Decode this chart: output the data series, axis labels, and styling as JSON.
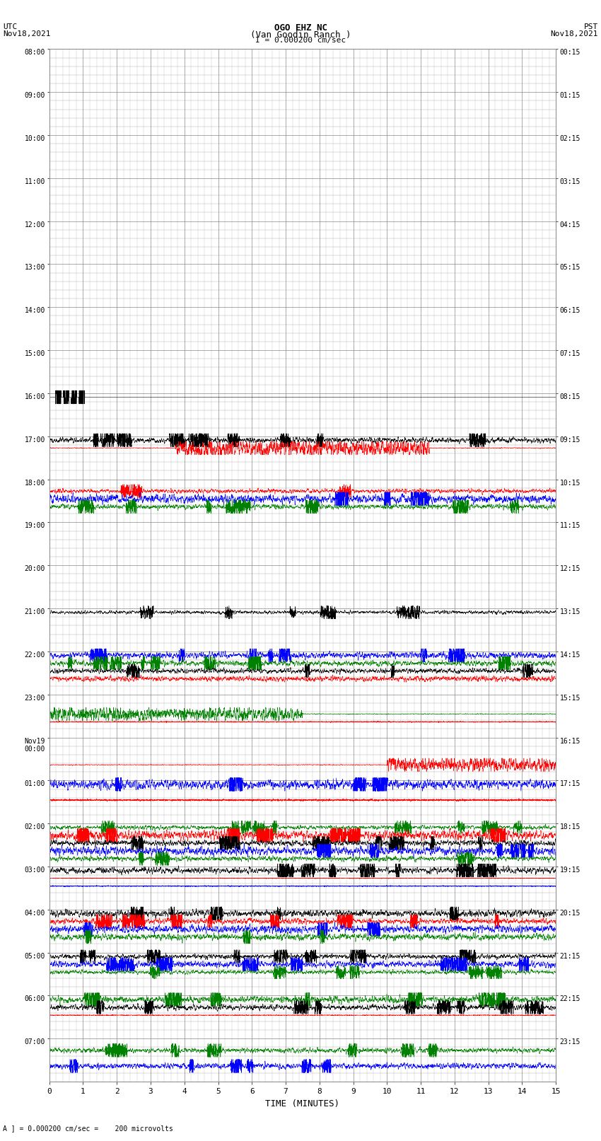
{
  "title_line1": "OGO EHZ NC",
  "title_line2": "(Van Goodin Ranch )",
  "title_scale": "I = 0.000200 cm/sec",
  "left_label_line1": "UTC",
  "left_label_line2": "Nov18,2021",
  "right_label_line1": "PST",
  "right_label_line2": "Nov18,2021",
  "bottom_label": "TIME (MINUTES)",
  "bottom_note": "A ] = 0.000200 cm/sec =    200 microvolts",
  "utc_times": [
    "08:00",
    "09:00",
    "10:00",
    "11:00",
    "12:00",
    "13:00",
    "14:00",
    "15:00",
    "16:00",
    "17:00",
    "18:00",
    "19:00",
    "20:00",
    "21:00",
    "22:00",
    "23:00",
    "Nov19\n00:00",
    "01:00",
    "02:00",
    "03:00",
    "04:00",
    "05:00",
    "06:00",
    "07:00"
  ],
  "pst_times": [
    "00:15",
    "01:15",
    "02:15",
    "03:15",
    "04:15",
    "05:15",
    "06:15",
    "07:15",
    "08:15",
    "09:15",
    "10:15",
    "11:15",
    "12:15",
    "13:15",
    "14:15",
    "15:15",
    "16:15",
    "17:15",
    "18:15",
    "19:15",
    "20:15",
    "21:15",
    "22:15",
    "23:15"
  ],
  "n_rows": 24,
  "minutes_per_row": 15,
  "background_color": "#ffffff",
  "grid_color": "#888888",
  "text_color": "#000000",
  "traces_per_row": 5,
  "row_definitions": {
    "0": {
      "traces": []
    },
    "1": {
      "traces": []
    },
    "2": {
      "traces": []
    },
    "3": {
      "traces": []
    },
    "4": {
      "traces": []
    },
    "5": {
      "traces": []
    },
    "6": {
      "traces": []
    },
    "7": {
      "traces": []
    },
    "8": {
      "traces": [
        {
          "slot": 0,
          "color": "black",
          "amp": 1.8,
          "noise_type": "spike_bursts"
        }
      ]
    },
    "9": {
      "traces": [
        {
          "slot": 0,
          "color": "black",
          "amp": 0.8,
          "noise_type": "continuous"
        },
        {
          "slot": 1,
          "color": "red",
          "amp": 1.5,
          "noise_type": "burst_middle"
        }
      ]
    },
    "10": {
      "traces": [
        {
          "slot": 1,
          "color": "red",
          "amp": 0.6,
          "noise_type": "continuous"
        },
        {
          "slot": 2,
          "color": "blue",
          "amp": 1.2,
          "noise_type": "continuous"
        },
        {
          "slot": 3,
          "color": "green",
          "amp": 0.7,
          "noise_type": "continuous"
        }
      ]
    },
    "11": {
      "traces": []
    },
    "12": {
      "traces": []
    },
    "13": {
      "traces": [
        {
          "slot": 0,
          "color": "black",
          "amp": 0.5,
          "noise_type": "continuous"
        }
      ]
    },
    "14": {
      "traces": [
        {
          "slot": 0,
          "color": "blue",
          "amp": 0.9,
          "noise_type": "continuous"
        },
        {
          "slot": 1,
          "color": "green",
          "amp": 0.8,
          "noise_type": "continuous"
        },
        {
          "slot": 2,
          "color": "black",
          "amp": 0.7,
          "noise_type": "continuous"
        },
        {
          "slot": 3,
          "color": "red",
          "amp": 1.5,
          "noise_type": "flat_high"
        }
      ]
    },
    "15": {
      "traces": [
        {
          "slot": 2,
          "color": "green",
          "amp": 1.2,
          "noise_type": "burst_left"
        },
        {
          "slot": 3,
          "color": "red",
          "amp": 0.3,
          "noise_type": "flat_low"
        }
      ]
    },
    "16": {
      "traces": [
        {
          "slot": 3,
          "color": "red",
          "amp": 1.0,
          "noise_type": "burst_right"
        }
      ]
    },
    "17": {
      "traces": [
        {
          "slot": 0,
          "color": "blue",
          "amp": 1.3,
          "noise_type": "continuous"
        },
        {
          "slot": 2,
          "color": "red",
          "amp": 0.5,
          "noise_type": "flat_low"
        }
      ]
    },
    "18": {
      "traces": [
        {
          "slot": 0,
          "color": "green",
          "amp": 0.6,
          "noise_type": "continuous"
        },
        {
          "slot": 1,
          "color": "red",
          "amp": 1.4,
          "noise_type": "continuous"
        },
        {
          "slot": 2,
          "color": "black",
          "amp": 0.8,
          "noise_type": "continuous"
        },
        {
          "slot": 3,
          "color": "blue",
          "amp": 1.2,
          "noise_type": "continuous"
        },
        {
          "slot": 4,
          "color": "green",
          "amp": 0.7,
          "noise_type": "continuous"
        }
      ]
    },
    "19": {
      "traces": [
        {
          "slot": 0,
          "color": "black",
          "amp": 0.9,
          "noise_type": "continuous"
        },
        {
          "slot": 1,
          "color": "red",
          "amp": 0.2,
          "noise_type": "flat_low"
        },
        {
          "slot": 2,
          "color": "blue",
          "amp": 0.3,
          "noise_type": "flat_low"
        }
      ]
    },
    "20": {
      "traces": [
        {
          "slot": 0,
          "color": "black",
          "amp": 1.0,
          "noise_type": "continuous"
        },
        {
          "slot": 1,
          "color": "red",
          "amp": 0.8,
          "noise_type": "continuous"
        },
        {
          "slot": 2,
          "color": "blue",
          "amp": 1.1,
          "noise_type": "continuous"
        },
        {
          "slot": 3,
          "color": "green",
          "amp": 0.9,
          "noise_type": "continuous"
        }
      ]
    },
    "21": {
      "traces": [
        {
          "slot": 0,
          "color": "black",
          "amp": 0.7,
          "noise_type": "continuous"
        },
        {
          "slot": 1,
          "color": "blue",
          "amp": 0.9,
          "noise_type": "continuous"
        },
        {
          "slot": 2,
          "color": "green",
          "amp": 0.6,
          "noise_type": "continuous"
        }
      ]
    },
    "22": {
      "traces": [
        {
          "slot": 0,
          "color": "green",
          "amp": 1.0,
          "noise_type": "continuous"
        },
        {
          "slot": 1,
          "color": "black",
          "amp": 0.8,
          "noise_type": "continuous"
        },
        {
          "slot": 2,
          "color": "red",
          "amp": 0.2,
          "noise_type": "flat_low"
        }
      ]
    },
    "23": {
      "traces": [
        {
          "slot": 1,
          "color": "green",
          "amp": 0.7,
          "noise_type": "continuous"
        },
        {
          "slot": 3,
          "color": "blue",
          "amp": 0.8,
          "noise_type": "continuous"
        }
      ]
    }
  },
  "seed": 12345
}
